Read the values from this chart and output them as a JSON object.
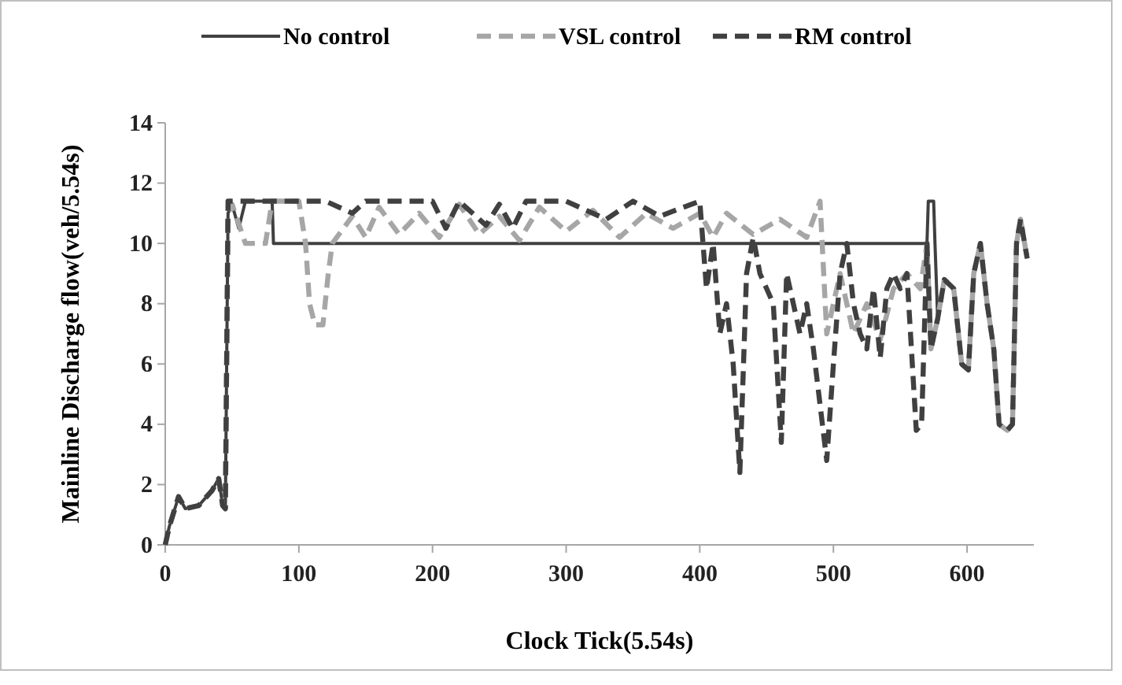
{
  "chart_data": {
    "type": "line",
    "xlabel": "Clock Tick(5.54s)",
    "ylabel": "Mainline Discharge flow(veh/5.54s)",
    "xlim": [
      0,
      650
    ],
    "ylim": [
      0,
      14
    ],
    "xticks": [
      0,
      100,
      200,
      300,
      400,
      500,
      600
    ],
    "yticks": [
      0,
      2,
      4,
      6,
      8,
      10,
      12,
      14
    ],
    "grid": false,
    "legend": "top",
    "marker": "none",
    "series": [
      {
        "name": "No control",
        "color": "#404040",
        "line_style": "solid",
        "x": [
          0,
          3,
          10,
          15,
          25,
          35,
          40,
          43,
          45,
          47,
          50,
          55,
          60,
          80,
          81,
          570,
          571,
          575,
          576,
          578,
          583,
          590,
          596,
          601,
          605,
          610,
          615,
          620,
          624,
          630,
          634,
          637,
          640,
          645
        ],
        "values": [
          0,
          0.6,
          1.6,
          1.2,
          1.3,
          1.8,
          2.2,
          1.3,
          1.2,
          11,
          11.3,
          10.5,
          11.4,
          11.4,
          10,
          10,
          11.4,
          11.4,
          10,
          7.5,
          8.8,
          8.5,
          6,
          5.8,
          9,
          10,
          8,
          6.5,
          4,
          3.8,
          4,
          10,
          10.8,
          9.5
        ]
      },
      {
        "name": "VSL control",
        "color": "#a6a6a6",
        "line_style": "dashed",
        "x": [
          0,
          3,
          10,
          15,
          25,
          35,
          40,
          43,
          45,
          47,
          50,
          60,
          75,
          80,
          100,
          105,
          108,
          112,
          118,
          122,
          125,
          140,
          150,
          160,
          175,
          190,
          205,
          220,
          235,
          250,
          265,
          280,
          300,
          320,
          340,
          360,
          380,
          400,
          410,
          420,
          440,
          460,
          480,
          490,
          495,
          505,
          515,
          525,
          535,
          545,
          555,
          565,
          570,
          573,
          578,
          583,
          590,
          596,
          601,
          605,
          610,
          615,
          620,
          624,
          630,
          634,
          637,
          640,
          645
        ],
        "values": [
          0,
          0.6,
          1.6,
          1.2,
          1.3,
          1.8,
          2.2,
          1.3,
          1.2,
          11,
          11.3,
          10,
          10,
          11.4,
          11.4,
          10,
          8,
          7.3,
          7.3,
          9,
          10,
          10.9,
          10.2,
          11.2,
          10.3,
          11,
          10.2,
          11.3,
          10.3,
          10.9,
          10.1,
          11.2,
          10.4,
          11.1,
          10.2,
          11,
          10.5,
          11,
          10.2,
          11,
          10.3,
          10.8,
          10.2,
          11.4,
          7,
          9,
          7,
          8,
          6.8,
          8.5,
          9,
          8.5,
          10,
          6.5,
          7.5,
          8.8,
          8.5,
          6,
          5.8,
          9,
          10,
          8,
          6.5,
          4,
          3.8,
          4,
          10,
          10.8,
          9.5
        ]
      },
      {
        "name": "RM control",
        "color": "#404040",
        "line_style": "dashed",
        "x": [
          0,
          3,
          10,
          15,
          25,
          35,
          40,
          43,
          45,
          47,
          60,
          120,
          140,
          150,
          200,
          210,
          220,
          240,
          250,
          260,
          270,
          300,
          330,
          350,
          370,
          400,
          405,
          410,
          415,
          420,
          425,
          430,
          435,
          440,
          445,
          450,
          455,
          461,
          465,
          470,
          475,
          480,
          485,
          495,
          500,
          505,
          510,
          515,
          520,
          525,
          530,
          535,
          540,
          545,
          550,
          555,
          562,
          566,
          570,
          573,
          578,
          583,
          590,
          596,
          601,
          605,
          610,
          615,
          620,
          624,
          630,
          634,
          637,
          640,
          645
        ],
        "values": [
          0,
          0.6,
          1.6,
          1.2,
          1.3,
          1.8,
          2.2,
          1.3,
          1.2,
          11.4,
          11.4,
          11.4,
          11,
          11.4,
          11.4,
          10.5,
          11.4,
          10.6,
          11.3,
          10.5,
          11.4,
          11.4,
          10.8,
          11.4,
          10.9,
          11.4,
          8.5,
          10,
          7,
          8,
          6,
          2.4,
          9,
          10.2,
          9,
          8.5,
          8,
          3.4,
          9,
          8,
          7,
          8,
          6.5,
          2.8,
          6,
          9,
          10,
          8,
          7,
          6.5,
          8.5,
          6.2,
          8.5,
          9,
          8.5,
          9,
          3.8,
          4,
          10,
          6.5,
          7.5,
          8.8,
          8.5,
          6,
          5.8,
          9,
          10,
          8,
          6.5,
          4,
          3.8,
          4,
          10,
          10.8,
          9.5
        ]
      }
    ]
  }
}
